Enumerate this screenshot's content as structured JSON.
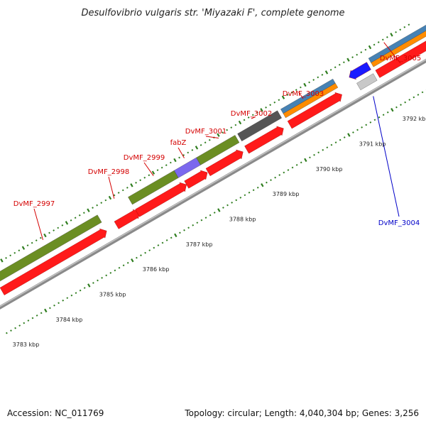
{
  "title": "Desulfovibrio vulgaris str. 'Miyazaki F', complete genome",
  "footer": {
    "accession": "Accession: NC_011769",
    "summary": "Topology: circular; Length: 4,040,304 bp; Genes: 3,256"
  },
  "colors": {
    "backbone": "#8a8a8a",
    "ticks": "#2e7d1e",
    "cds": "#ff1a1a",
    "cds_reverse": "#1a1aff",
    "label_forward": "#d40000",
    "label_reverse": "#0000c8",
    "cog_olive": "#6b8e23",
    "cog_purple": "#7b68ee",
    "cog_gray": "#555555",
    "cog_light_gray": "#c8c8c8",
    "cog_blue": "#4682b4",
    "cog_orange": "#ff8c00"
  },
  "scale_labels": [
    "3783 kbp",
    "3784 kbp",
    "3785 kbp",
    "3786 kbp",
    "3787 kbp",
    "3788 kbp",
    "3789 kbp",
    "3790 kbp",
    "3791 kbp",
    "3792 kbp"
  ],
  "genes": [
    {
      "label": "DvMF_2997",
      "strand": "forward",
      "cog_colors": [
        "cog_olive"
      ]
    },
    {
      "label": "DvMF_2998",
      "strand": "forward",
      "cog_colors": []
    },
    {
      "label": "DvMF_2999",
      "strand": "forward",
      "cog_colors": [
        "cog_olive"
      ]
    },
    {
      "label": "fabZ",
      "strand": "forward",
      "cog_colors": [
        "cog_purple"
      ]
    },
    {
      "label": "DvMF_3001",
      "strand": "forward",
      "cog_colors": [
        "cog_olive"
      ]
    },
    {
      "label": "DvMF_3002",
      "strand": "forward",
      "cog_colors": [
        "cog_gray"
      ]
    },
    {
      "label": "DvMF_3003",
      "strand": "forward",
      "cog_colors": [
        "cog_orange",
        "cog_blue"
      ]
    },
    {
      "label": "DvMF_3004",
      "strand": "reverse",
      "cog_colors": [
        "cog_light_gray"
      ]
    },
    {
      "label": "DvMF_3005",
      "strand": "forward",
      "cog_colors": [
        "cog_orange",
        "cog_blue"
      ]
    }
  ]
}
